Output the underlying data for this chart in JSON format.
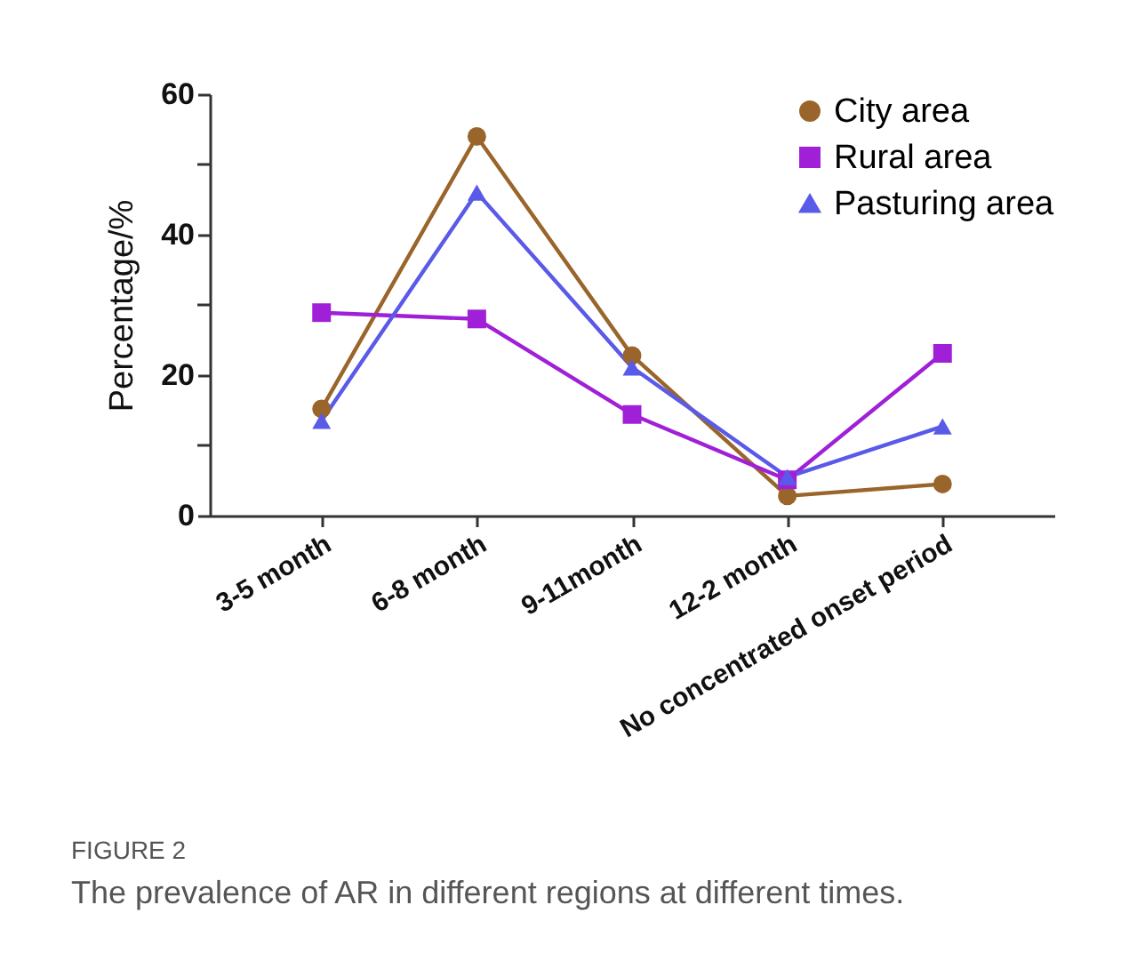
{
  "chart_data": {
    "type": "line",
    "categories": [
      "3-5 month",
      "6-8 month",
      "9-11month",
      "12-2 month",
      "No concentrated onset period"
    ],
    "series": [
      {
        "name": "City area",
        "color": "#9a652a",
        "marker": "circle",
        "values": [
          15.2,
          54,
          22.8,
          2.8,
          4.5
        ]
      },
      {
        "name": "Rural area",
        "color": "#a020d8",
        "marker": "square",
        "values": [
          28.9,
          28,
          14.4,
          5.1,
          23.1
        ]
      },
      {
        "name": "Pasturing area",
        "color": "#5a5ae8",
        "marker": "triangle",
        "values": [
          13.5,
          46,
          21.1,
          5.5,
          12.7
        ]
      }
    ],
    "ylabel": "Percentage/%",
    "ylim": [
      0,
      60
    ],
    "yticks": [
      0,
      {
        "value": 10,
        "label": null
      },
      20,
      {
        "value": 30,
        "label": null
      },
      40,
      {
        "value": 50,
        "label": null
      },
      60
    ],
    "grid": false,
    "legend": "top right",
    "annotations": [
      "FIGURE 2",
      "The prevalence of AR in different regions at different times."
    ]
  }
}
